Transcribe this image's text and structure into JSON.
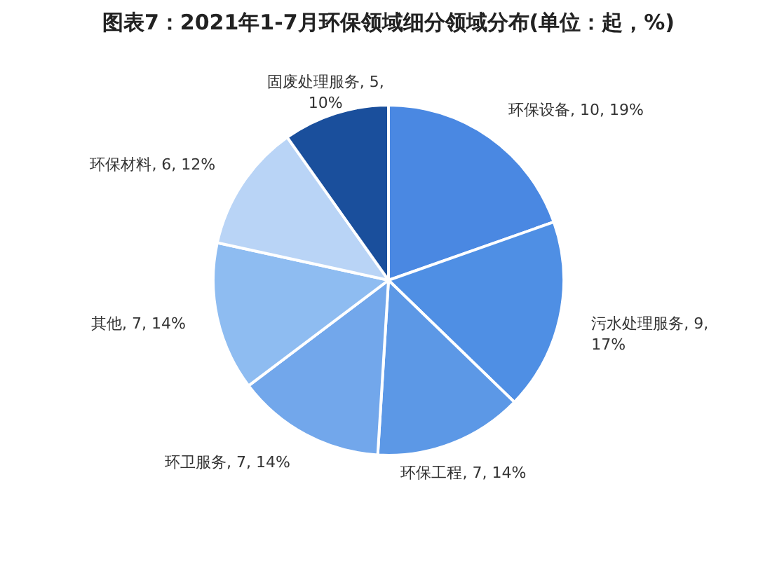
{
  "chart_data": {
    "type": "pie",
    "title": "图表7：2021年1-7月环保领域细分领域分布(单位：起，%)",
    "categories": [
      "环保设备",
      "污水处理服务",
      "环保工程",
      "环卫服务",
      "其他",
      "环保材料",
      "固废处理服务"
    ],
    "values": [
      10,
      9,
      7,
      7,
      7,
      6,
      5
    ],
    "value_labels": [
      "10, 19%",
      "9, 17%",
      "7, 14%",
      "7, 14%",
      "7, 14%",
      "6, 12%",
      "5, 10%"
    ],
    "colors": [
      "#4a88e2",
      "#4f8fe4",
      "#5c98e6",
      "#72a7eb",
      "#8ebcf1",
      "#b9d4f6",
      "#1a4f9c"
    ],
    "legend": false
  }
}
